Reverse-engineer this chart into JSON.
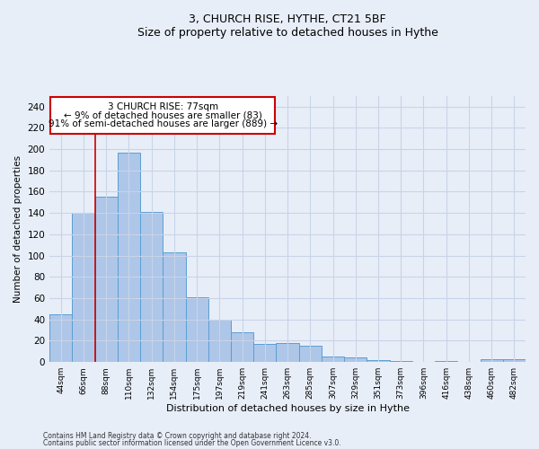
{
  "title1": "3, CHURCH RISE, HYTHE, CT21 5BF",
  "title2": "Size of property relative to detached houses in Hythe",
  "xlabel": "Distribution of detached houses by size in Hythe",
  "ylabel": "Number of detached properties",
  "bar_labels": [
    "44sqm",
    "66sqm",
    "88sqm",
    "110sqm",
    "132sqm",
    "154sqm",
    "175sqm",
    "197sqm",
    "219sqm",
    "241sqm",
    "263sqm",
    "285sqm",
    "307sqm",
    "329sqm",
    "351sqm",
    "373sqm",
    "396sqm",
    "416sqm",
    "438sqm",
    "460sqm",
    "482sqm"
  ],
  "bar_values": [
    45,
    140,
    155,
    197,
    141,
    103,
    61,
    40,
    28,
    17,
    18,
    15,
    5,
    4,
    2,
    1,
    0,
    1,
    0,
    3,
    3
  ],
  "bar_color": "#aec6e8",
  "bar_edge_color": "#5a9fd4",
  "annotation_text_line1": "3 CHURCH RISE: 77sqm",
  "annotation_text_line2": "← 9% of detached houses are smaller (83)",
  "annotation_text_line3": "91% of semi-detached houses are larger (889) →",
  "red_line_x": 1.5,
  "ylim": [
    0,
    250
  ],
  "yticks": [
    0,
    20,
    40,
    60,
    80,
    100,
    120,
    140,
    160,
    180,
    200,
    220,
    240
  ],
  "footnote1": "Contains HM Land Registry data © Crown copyright and database right 2024.",
  "footnote2": "Contains public sector information licensed under the Open Government Licence v3.0.",
  "background_color": "#e8eef8",
  "plot_bg_color": "#e8eef8",
  "grid_color": "#c8d4e8"
}
